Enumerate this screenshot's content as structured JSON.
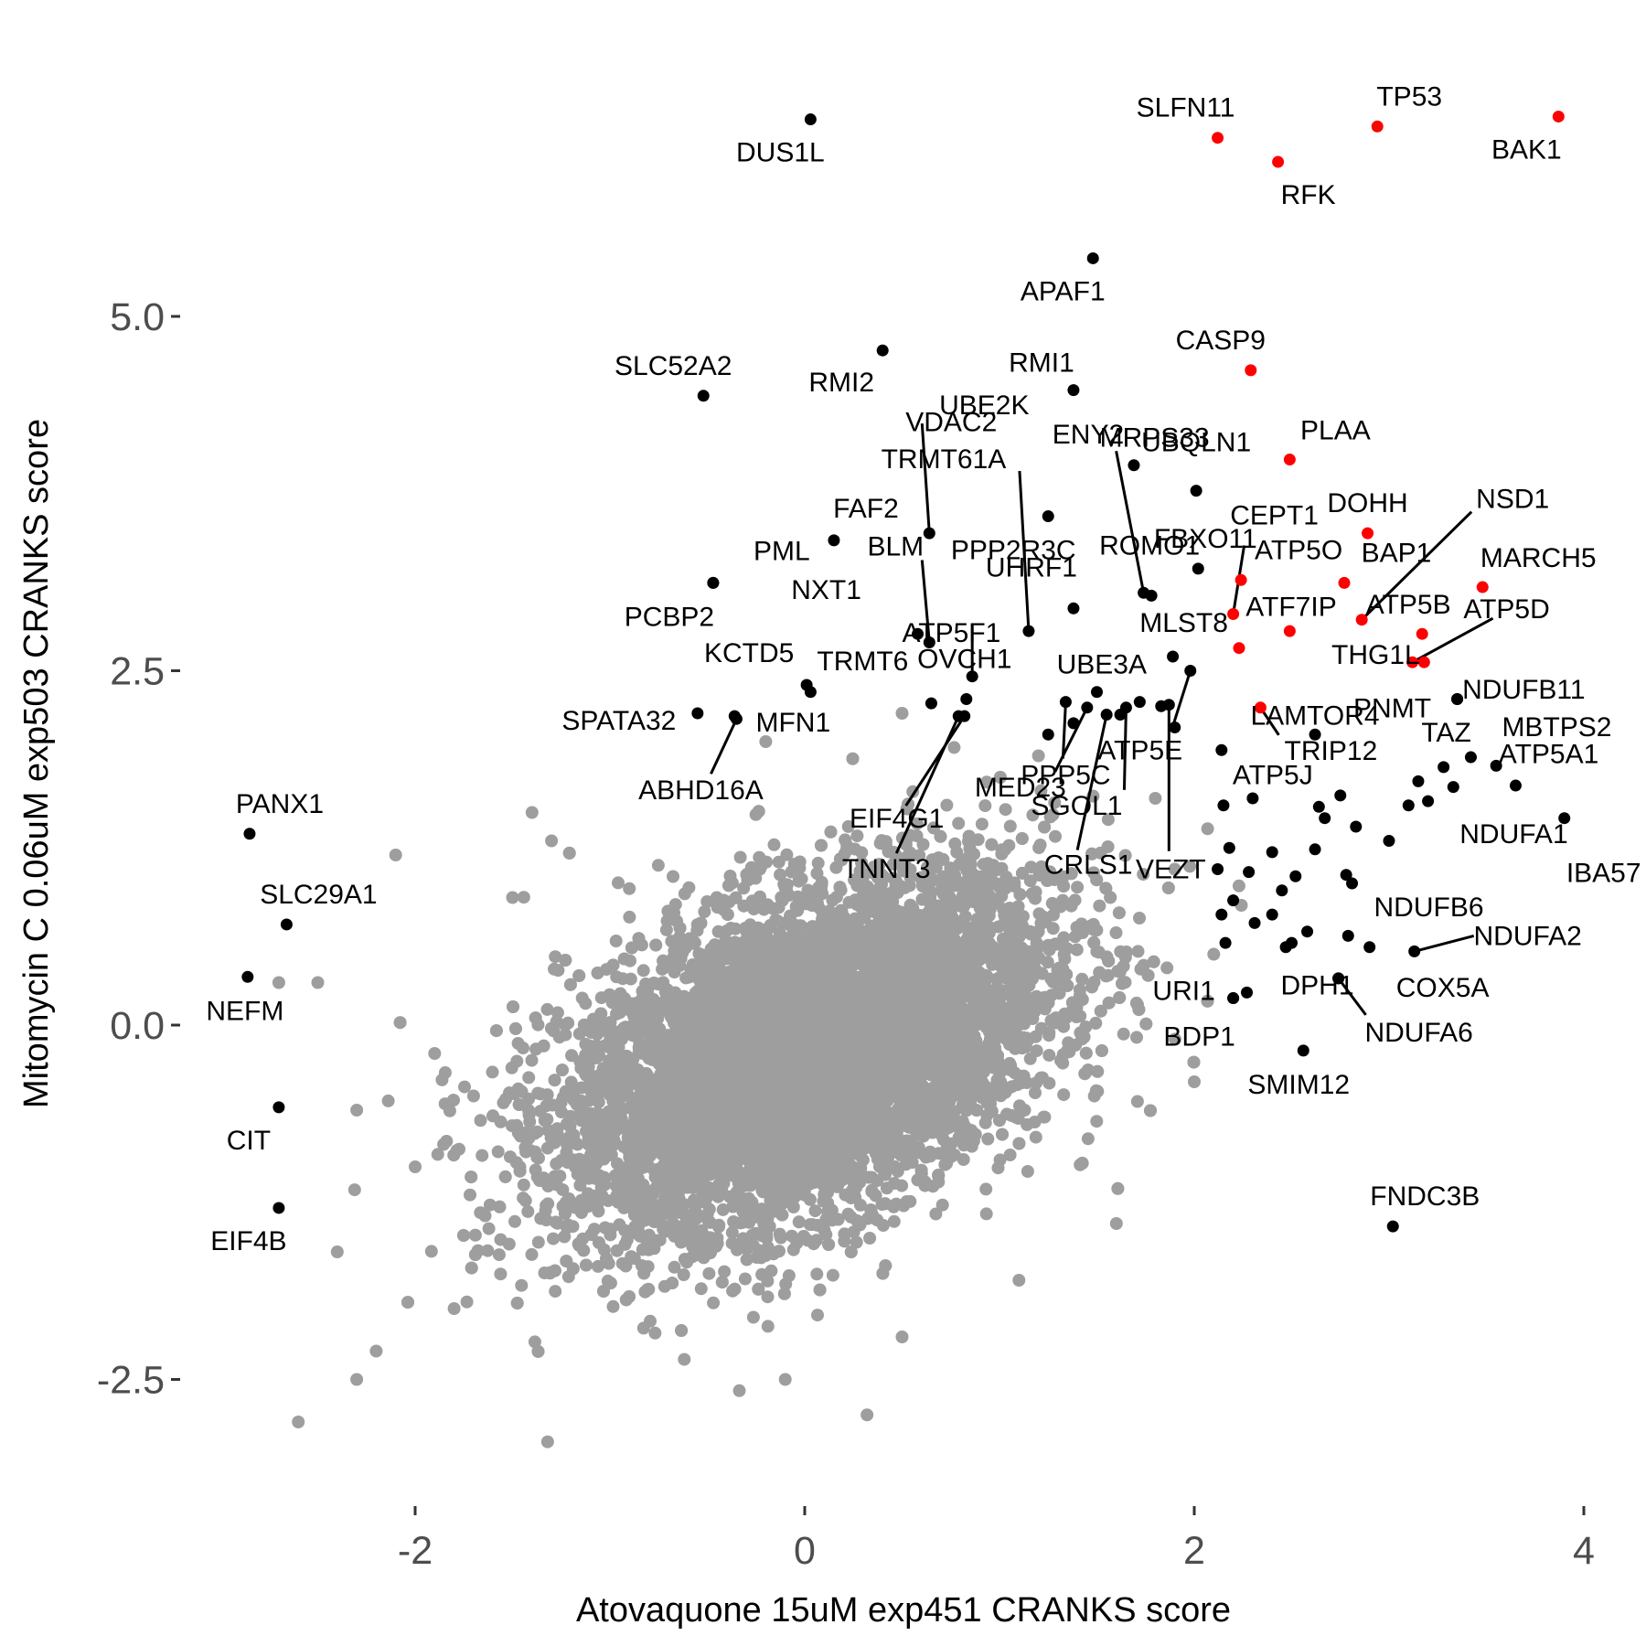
{
  "chart_data": {
    "type": "scatter",
    "title": "",
    "xlabel": "Atovaquone 15uM exp451 CRANKS score",
    "ylabel": "Mitomycin C 0.06uM exp503 CRANKS score",
    "xlim": [
      -3.3,
      4.05
    ],
    "ylim": [
      -3.2,
      7.2
    ],
    "x_ticks": [
      -2,
      0,
      2,
      4
    ],
    "x_tick_labels": [
      "-2",
      "0",
      "2",
      "4"
    ],
    "y_ticks": [
      -2.5,
      0.0,
      2.5,
      5.0
    ],
    "y_tick_labels": [
      "-2.5",
      "0.0",
      "2.5",
      "5.0"
    ],
    "grid": false,
    "legend": "none",
    "colors": {
      "background_points": "#9e9e9e",
      "highlight_red": "#ff0000",
      "highlight_black": "#000000",
      "axis_text": "#4d4d4d"
    },
    "background_cloud": {
      "description_points": "~18000 grey points centered near (0, -0.2), correlated",
      "extreme_points": [
        [
          -1.32,
          -2.94
        ],
        [
          -2.6,
          -2.8
        ],
        [
          0.32,
          -2.75
        ],
        [
          -2.2,
          -2.3
        ],
        [
          -2.3,
          -2.5
        ],
        [
          -0.1,
          -2.5
        ],
        [
          -1.7,
          -0.5
        ],
        [
          -1.9,
          -0.2
        ],
        [
          -2.7,
          0.3
        ],
        [
          -2.5,
          0.3
        ],
        [
          -2.0,
          -1.0
        ],
        [
          -2.4,
          -1.6
        ],
        [
          -2.3,
          -0.6
        ],
        [
          -2.1,
          1.2
        ],
        [
          -1.4,
          1.5
        ],
        [
          1.6,
          -1.4
        ],
        [
          2.0,
          -0.4
        ],
        [
          2.1,
          0.5
        ],
        [
          1.8,
          1.6
        ],
        [
          -1.3,
          1.3
        ],
        [
          -0.2,
          2.0
        ],
        [
          0.5,
          2.2
        ],
        [
          1.2,
          1.9
        ],
        [
          -1.8,
          -2.0
        ],
        [
          0.5,
          -2.2
        ],
        [
          1.1,
          -1.8
        ],
        [
          -1.5,
          0.9
        ],
        [
          1.9,
          1.1
        ]
      ]
    },
    "series": [
      {
        "color": "#ff0000",
        "points": [
          {
            "label": "SLFN11",
            "x": 2.12,
            "y": 6.26
          },
          {
            "label": "TP53",
            "x": 2.94,
            "y": 6.34
          },
          {
            "label": "BAK1",
            "x": 3.87,
            "y": 6.41
          },
          {
            "label": "RFK",
            "x": 2.43,
            "y": 6.09
          },
          {
            "label": "CASP9",
            "x": 2.29,
            "y": 4.62
          },
          {
            "label": "PLAA",
            "x": 2.49,
            "y": 3.99
          },
          {
            "label": "DOHH",
            "x": 2.89,
            "y": 3.47
          },
          {
            "label": "BAP1",
            "x": 2.77,
            "y": 3.12
          },
          {
            "label": "MARCH5",
            "x": 3.48,
            "y": 3.09
          },
          {
            "label": "ATP5O",
            "x": 2.24,
            "y": 3.14
          },
          {
            "label": "CEPT1",
            "x": 2.2,
            "y": 2.9
          },
          {
            "label": "NSD1",
            "x": 2.86,
            "y": 2.86
          },
          {
            "label": "ATP5B",
            "x": 3.17,
            "y": 2.76
          },
          {
            "label": "THG1L",
            "x": 2.49,
            "y": 2.78
          },
          {
            "label": "ATF7IP",
            "x": 2.23,
            "y": 2.66
          },
          {
            "label": "ATP5D",
            "x": 3.12,
            "y": 2.56
          },
          {
            "label": "NDUFB11",
            "x": 3.18,
            "y": 2.56
          },
          {
            "label": "TRIP12",
            "x": 2.34,
            "y": 2.24
          }
        ]
      },
      {
        "color": "#000000",
        "points": [
          {
            "label": "DUS1L",
            "x": 0.03,
            "y": 6.39
          },
          {
            "label": "APAF1",
            "x": 1.48,
            "y": 5.41
          },
          {
            "label": "RMI2",
            "x": 0.4,
            "y": 4.76
          },
          {
            "label": "SLC52A2",
            "x": -0.52,
            "y": 4.44
          },
          {
            "label": "RMI1",
            "x": 1.38,
            "y": 4.48
          },
          {
            "label": "ENY2",
            "x": 1.69,
            "y": 3.95
          },
          {
            "label": "UBQLN1",
            "x": 2.01,
            "y": 3.77
          },
          {
            "label": "TRMT61A",
            "x": 1.15,
            "y": 2.78
          },
          {
            "label": "VDAC2",
            "x": 1.25,
            "y": 3.59
          },
          {
            "label": "MRPS33",
            "x": 1.74,
            "y": 3.05
          },
          {
            "label": "FAF2",
            "x": 0.15,
            "y": 3.42
          },
          {
            "label": "FBXO11",
            "x": 2.02,
            "y": 3.22
          },
          {
            "label": "UBE2K",
            "x": 0.64,
            "y": 3.47
          },
          {
            "label": "UHRF1",
            "x": 1.38,
            "y": 2.94
          },
          {
            "label": "PML",
            "x": -0.47,
            "y": 3.12
          },
          {
            "label": "BLM",
            "x": 0.64,
            "y": 2.7
          },
          {
            "label": "PPP2R3C",
            "x": 0.86,
            "y": 2.46
          },
          {
            "label": "PCBP2",
            "x": -0.47,
            "y": 3.12
          },
          {
            "label": "NXT1",
            "x": 0.58,
            "y": 2.76
          },
          {
            "label": "ROMO1",
            "x": 1.78,
            "y": 3.03
          },
          {
            "label": "MLST8",
            "x": 1.89,
            "y": 2.6
          },
          {
            "label": "KCTD5",
            "x": 0.01,
            "y": 2.4
          },
          {
            "label": "TRMT6",
            "x": 0.03,
            "y": 2.35
          },
          {
            "label": "ATP5F1",
            "x": 0.65,
            "y": 2.27
          },
          {
            "label": "UBE3A",
            "x": 1.83,
            "y": 2.25
          },
          {
            "label": "SPATA32",
            "x": -0.55,
            "y": 2.2
          },
          {
            "label": "MFN1",
            "x": -0.36,
            "y": 2.18
          },
          {
            "label": "OVCH1",
            "x": 0.83,
            "y": 2.3
          },
          {
            "label": "ABHD16A",
            "x": -0.35,
            "y": 2.16
          },
          {
            "label": "EIF4G1",
            "x": 0.82,
            "y": 2.18
          },
          {
            "label": "PPP5C",
            "x": 1.34,
            "y": 2.28
          },
          {
            "label": "ATP5E",
            "x": 1.98,
            "y": 2.5
          },
          {
            "label": "PNMT",
            "x": 3.35,
            "y": 2.3
          },
          {
            "label": "ATP5A1",
            "x": 3.35,
            "y": 2.3
          },
          {
            "label": "MED23",
            "x": 1.45,
            "y": 2.24
          },
          {
            "label": "SGOL1",
            "x": 1.65,
            "y": 2.24
          },
          {
            "label": "ATP5J",
            "x": 2.14,
            "y": 1.94
          },
          {
            "label": "LAMTOR4",
            "x": 2.62,
            "y": 2.05
          },
          {
            "label": "TAZ",
            "x": 3.28,
            "y": 1.82
          },
          {
            "label": "MBTPS2",
            "x": 3.42,
            "y": 1.89
          },
          {
            "label": "TNNT3",
            "x": 0.79,
            "y": 2.18
          },
          {
            "label": "CRLS1",
            "x": 1.55,
            "y": 2.19
          },
          {
            "label": "VEZT",
            "x": 1.87,
            "y": 2.26
          },
          {
            "label": "NDUFA1",
            "x": 3.65,
            "y": 1.69
          },
          {
            "label": "IBA57",
            "x": 3.9,
            "y": 1.46
          },
          {
            "label": "PANX1",
            "x": -2.85,
            "y": 1.35
          },
          {
            "label": "NDUFB6",
            "x": 2.81,
            "y": 1.0
          },
          {
            "label": "SLC29A1",
            "x": -2.66,
            "y": 0.71
          },
          {
            "label": "NDUFA2",
            "x": 3.13,
            "y": 0.52
          },
          {
            "label": "NEFM",
            "x": -2.86,
            "y": 0.34
          },
          {
            "label": "URI1",
            "x": 2.2,
            "y": 0.19
          },
          {
            "label": "DPH1",
            "x": 2.27,
            "y": 0.23
          },
          {
            "label": "COX5A",
            "x": 2.74,
            "y": 0.33
          },
          {
            "label": "BDP1",
            "x": 2.2,
            "y": 0.19
          },
          {
            "label": "NDUFA6",
            "x": 2.74,
            "y": 0.33
          },
          {
            "label": "SMIM12",
            "x": 2.56,
            "y": -0.18
          },
          {
            "label": "CIT",
            "x": -2.7,
            "y": -0.58
          },
          {
            "label": "EIF4B",
            "x": -2.7,
            "y": -1.29
          },
          {
            "label": "FNDC3B",
            "x": 3.02,
            "y": -1.42
          }
        ],
        "unlabeled_points": [
          [
            1.5,
            2.35
          ],
          [
            1.62,
            2.19
          ],
          [
            1.72,
            2.28
          ],
          [
            1.38,
            2.13
          ],
          [
            1.25,
            2.05
          ],
          [
            1.9,
            2.1
          ],
          [
            2.15,
            1.55
          ],
          [
            2.3,
            1.6
          ],
          [
            2.18,
            1.25
          ],
          [
            2.28,
            1.08
          ],
          [
            2.4,
            1.22
          ],
          [
            2.52,
            1.05
          ],
          [
            2.62,
            1.24
          ],
          [
            2.2,
            0.88
          ],
          [
            2.4,
            0.78
          ],
          [
            2.58,
            0.66
          ],
          [
            2.47,
            0.55
          ],
          [
            2.64,
            1.54
          ],
          [
            2.75,
            1.62
          ],
          [
            2.83,
            1.4
          ],
          [
            3.1,
            1.55
          ],
          [
            3.2,
            1.58
          ],
          [
            3.33,
            1.68
          ],
          [
            3.55,
            1.83
          ],
          [
            2.12,
            1.1
          ],
          [
            2.14,
            0.78
          ],
          [
            2.16,
            0.58
          ],
          [
            2.31,
            0.72
          ],
          [
            2.45,
            0.95
          ],
          [
            2.78,
            1.06
          ],
          [
            2.79,
            0.63
          ],
          [
            2.9,
            0.55
          ],
          [
            3.0,
            1.3
          ],
          [
            3.15,
            1.72
          ],
          [
            2.67,
            1.46
          ],
          [
            2.5,
            0.58
          ]
        ]
      }
    ]
  }
}
